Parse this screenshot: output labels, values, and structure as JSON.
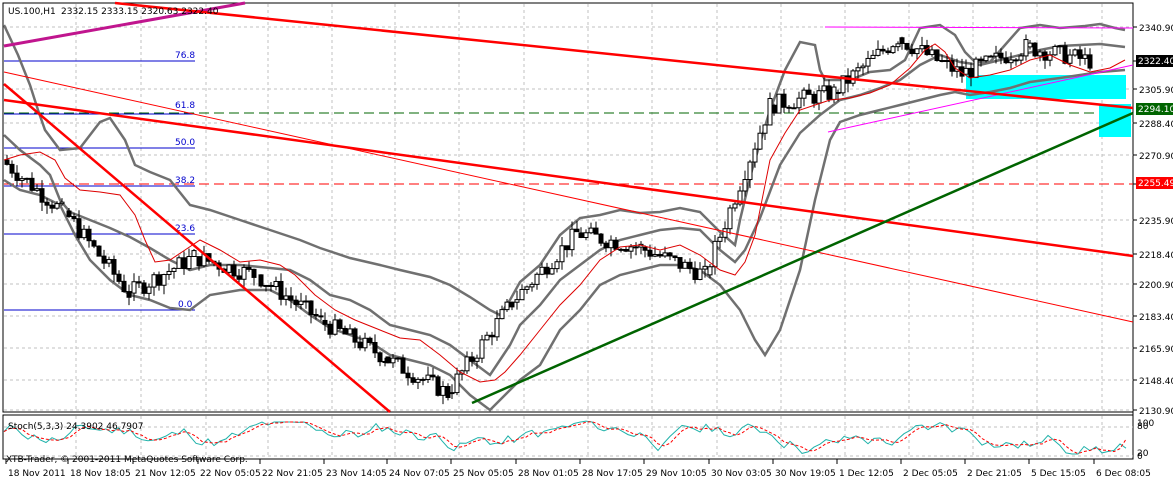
{
  "header": {
    "symbol": "US.100,H1",
    "ohlc": "2332.15 2333.15 2320.63 2322.40"
  },
  "subwindow": {
    "indicator_label": "Stoch(5,3,3) 24.3902 46.7907",
    "copyright": "XTB-Trader, © 2001-2011 MetaQuotes Software Corp.",
    "scale_top": "100",
    "scale_80": "80",
    "scale_20": "20",
    "scale_bottom": "0"
  },
  "price_labels": {
    "current": {
      "text": "2322.40",
      "bg": "#000000"
    },
    "green_line": {
      "text": "2294.10",
      "bg": "#006400"
    },
    "red_line": {
      "text": "2255.49",
      "bg": "#ff0000"
    }
  },
  "fib_labels": [
    "76.8",
    "61.8",
    "50.0",
    "38.2",
    "23.6",
    "0.0"
  ],
  "chart_data": {
    "type": "candlestick",
    "title": "US.100,H1",
    "timeframe": "H1",
    "ohlc_last": {
      "open": 2332.15,
      "high": 2333.15,
      "low": 2320.63,
      "close": 2322.4
    },
    "y_ticks": [
      2340.9,
      2322.4,
      2305.9,
      2288.4,
      2270.9,
      2255.49,
      2235.9,
      2218.4,
      2200.9,
      2183.4,
      2165.9,
      2148.4,
      2130.9
    ],
    "x_ticks": [
      "18 Nov 2011",
      "18 Nov 18:05",
      "21 Nov 12:05",
      "22 Nov 05:05",
      "22 Nov 21:05",
      "23 Nov 14:05",
      "24 Nov 07:05",
      "25 Nov 05:05",
      "28 Nov 01:05",
      "28 Nov 17:05",
      "29 Nov 10:05",
      "30 Nov 03:05",
      "30 Nov 19:05",
      "1 Dec 12:05",
      "2 Dec 05:05",
      "2 Dec 21:05",
      "5 Dec 15:05",
      "6 Dec 08:05"
    ],
    "ylim": [
      2128,
      2350
    ],
    "grid": true,
    "overlays": [
      "Bollinger Bands",
      "Moving Average",
      "Fibonacci retracement",
      "Trendlines",
      "Rectangles (cyan)"
    ],
    "fibonacci_levels": [
      76.8,
      61.8,
      50.0,
      38.2,
      23.6,
      0.0
    ],
    "horizontal_lines": [
      {
        "price": 2294.1,
        "color": "#006400",
        "style": "dashed"
      },
      {
        "price": 2255.49,
        "color": "#ff0000",
        "style": "dashed"
      }
    ],
    "approx_close_path": [
      {
        "t": "18 Nov 2011",
        "close": 2268
      },
      {
        "t": "18 Nov 18:05",
        "close": 2240
      },
      {
        "t": "21 Nov 12:05",
        "close": 2195
      },
      {
        "t": "22 Nov 05:05",
        "close": 2215
      },
      {
        "t": "22 Nov 21:05",
        "close": 2205
      },
      {
        "t": "23 Nov 14:05",
        "close": 2180
      },
      {
        "t": "24 Nov 07:05",
        "close": 2160
      },
      {
        "t": "25 Nov 05:05",
        "close": 2140
      },
      {
        "t": "28 Nov 01:05",
        "close": 2190
      },
      {
        "t": "28 Nov 17:05",
        "close": 2228
      },
      {
        "t": "29 Nov 10:05",
        "close": 2220
      },
      {
        "t": "30 Nov 03:05",
        "close": 2205
      },
      {
        "t": "30 Nov 19:05",
        "close": 2298
      },
      {
        "t": "1 Dec 12:05",
        "close": 2305
      },
      {
        "t": "2 Dec 05:05",
        "close": 2335
      },
      {
        "t": "2 Dec 21:05",
        "close": 2315
      },
      {
        "t": "5 Dec 15:05",
        "close": 2330
      },
      {
        "t": "6 Dec 08:05",
        "close": 2322.4
      }
    ],
    "stochastic": {
      "name": "Stoch(5,3,3)",
      "main": 24.3902,
      "signal": 46.7907,
      "levels": [
        20,
        80
      ],
      "range": [
        0,
        100
      ]
    }
  }
}
